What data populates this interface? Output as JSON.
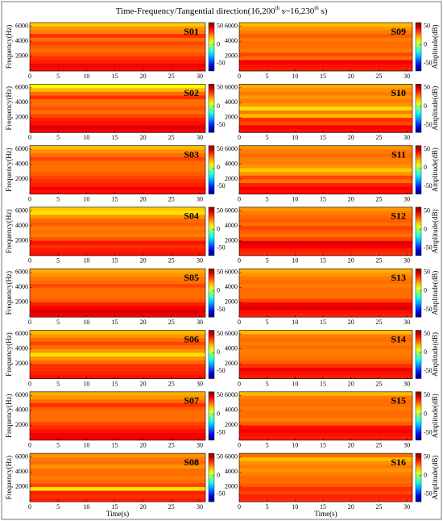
{
  "chart_data": {
    "type": "spectrogram-grid",
    "title_parts": [
      "Time-Frequency/Tangential direction(16,200",
      "th",
      " s~16,230",
      "th",
      " s)"
    ],
    "xlabel": "Time(s)",
    "ylabel": "Frequency(Hz)",
    "colorbar_label": "Amplitude(dB)",
    "xlim": [
      0,
      31
    ],
    "xticks": [
      0,
      5,
      10,
      15,
      20,
      25,
      30
    ],
    "ylim": [
      0,
      6500
    ],
    "yticks": [
      2000,
      4000,
      6000
    ],
    "clim": [
      -70,
      60
    ],
    "cticks": [
      -50,
      0,
      50
    ],
    "colormap": "jet",
    "frequency_edges": [
      0,
      500,
      1000,
      1500,
      2000,
      2500,
      3000,
      3500,
      4000,
      4500,
      5000,
      5500,
      6000,
      6500
    ],
    "panels": [
      {
        "name": "S01",
        "values": [
          42,
          45,
          40,
          38,
          33,
          30,
          32,
          35,
          30,
          38,
          28,
          25,
          18
        ]
      },
      {
        "name": "S02",
        "values": [
          45,
          48,
          42,
          40,
          35,
          30,
          33,
          30,
          30,
          38,
          30,
          20,
          12
        ]
      },
      {
        "name": "S03",
        "values": [
          42,
          45,
          40,
          38,
          35,
          32,
          30,
          30,
          30,
          35,
          30,
          25,
          20
        ]
      },
      {
        "name": "S04",
        "values": [
          42,
          40,
          38,
          42,
          33,
          28,
          30,
          28,
          32,
          30,
          25,
          15,
          18
        ]
      },
      {
        "name": "S05",
        "values": [
          45,
          48,
          45,
          40,
          32,
          30,
          30,
          30,
          35,
          30,
          28,
          25,
          22
        ]
      },
      {
        "name": "S06",
        "values": [
          42,
          40,
          38,
          38,
          30,
          25,
          15,
          25,
          30,
          35,
          30,
          25,
          20
        ]
      },
      {
        "name": "S07",
        "values": [
          45,
          45,
          42,
          38,
          35,
          30,
          30,
          30,
          32,
          38,
          30,
          25,
          22
        ]
      },
      {
        "name": "S08",
        "values": [
          40,
          38,
          40,
          15,
          35,
          30,
          28,
          30,
          30,
          25,
          30,
          28,
          25
        ]
      },
      {
        "name": "S09",
        "values": [
          40,
          42,
          45,
          30,
          35,
          28,
          30,
          30,
          28,
          32,
          28,
          25,
          20
        ]
      },
      {
        "name": "S10",
        "values": [
          42,
          45,
          35,
          38,
          20,
          28,
          15,
          25,
          28,
          25,
          28,
          25,
          22
        ]
      },
      {
        "name": "S11",
        "values": [
          42,
          45,
          40,
          30,
          35,
          25,
          18,
          25,
          28,
          28,
          30,
          28,
          25
        ]
      },
      {
        "name": "S12",
        "values": [
          38,
          40,
          45,
          48,
          35,
          30,
          32,
          35,
          30,
          32,
          30,
          28,
          25
        ]
      },
      {
        "name": "S13",
        "values": [
          40,
          42,
          48,
          45,
          35,
          30,
          30,
          30,
          28,
          30,
          28,
          25,
          22
        ]
      },
      {
        "name": "S14",
        "values": [
          40,
          42,
          45,
          38,
          32,
          30,
          28,
          28,
          30,
          28,
          30,
          28,
          20
        ]
      },
      {
        "name": "S15",
        "values": [
          40,
          42,
          45,
          42,
          32,
          28,
          30,
          30,
          28,
          30,
          30,
          28,
          20
        ]
      },
      {
        "name": "S16",
        "values": [
          38,
          40,
          35,
          38,
          32,
          30,
          30,
          28,
          25,
          28,
          25,
          20,
          30
        ]
      }
    ]
  }
}
